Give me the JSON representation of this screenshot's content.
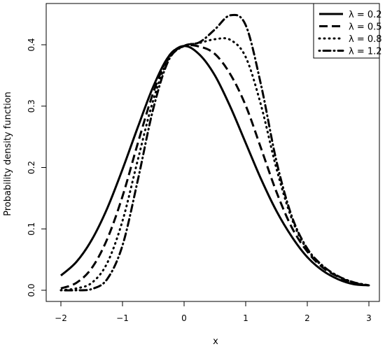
{
  "chart_data": {
    "type": "line",
    "title": "",
    "xlabel": "x",
    "ylabel": "Probability density function",
    "xlim": [
      -2,
      3
    ],
    "ylim": [
      0,
      0.45
    ],
    "x_ticks": [
      -2,
      -1,
      0,
      1,
      2,
      3
    ],
    "x_tick_labels": [
      "−2",
      "−1",
      "0",
      "1",
      "2",
      "3"
    ],
    "y_ticks": [
      0.0,
      0.1,
      0.2,
      0.3,
      0.4
    ],
    "y_tick_labels": [
      "0.0",
      "0.1",
      "0.2",
      "0.3",
      "0.4"
    ],
    "grid": false,
    "legend_position": "top-right",
    "x": [
      -2.0,
      -1.75,
      -1.5,
      -1.25,
      -1.0,
      -0.75,
      -0.5,
      -0.25,
      0.0,
      0.25,
      0.5,
      0.75,
      1.0,
      1.25,
      1.5,
      1.75,
      2.0,
      2.25,
      2.5,
      2.75,
      3.0
    ],
    "series": [
      {
        "name": "λ = 0.2",
        "line_style": "solid",
        "values": [
          0.024,
          0.046,
          0.082,
          0.133,
          0.197,
          0.266,
          0.332,
          0.381,
          0.398,
          0.384,
          0.35,
          0.299,
          0.24,
          0.181,
          0.129,
          0.087,
          0.054,
          0.032,
          0.018,
          0.01,
          0.008
        ]
      },
      {
        "name": "λ = 0.5",
        "line_style": "dashed",
        "values": [
          0.003,
          0.012,
          0.036,
          0.083,
          0.153,
          0.24,
          0.322,
          0.381,
          0.398,
          0.397,
          0.385,
          0.352,
          0.301,
          0.231,
          0.16,
          0.102,
          0.063,
          0.037,
          0.022,
          0.012,
          0.008
        ]
      },
      {
        "name": "λ = 0.8",
        "line_style": "dotted",
        "values": [
          0.0,
          0.003,
          0.012,
          0.044,
          0.113,
          0.213,
          0.31,
          0.378,
          0.398,
          0.403,
          0.409,
          0.408,
          0.38,
          0.301,
          0.198,
          0.116,
          0.066,
          0.039,
          0.023,
          0.013,
          0.008
        ]
      },
      {
        "name": "λ = 1.2",
        "line_style": "dotdash",
        "values": [
          0.0,
          0.0,
          0.002,
          0.018,
          0.073,
          0.18,
          0.296,
          0.375,
          0.398,
          0.404,
          0.425,
          0.448,
          0.432,
          0.334,
          0.21,
          0.12,
          0.068,
          0.04,
          0.023,
          0.013,
          0.008
        ]
      }
    ]
  }
}
